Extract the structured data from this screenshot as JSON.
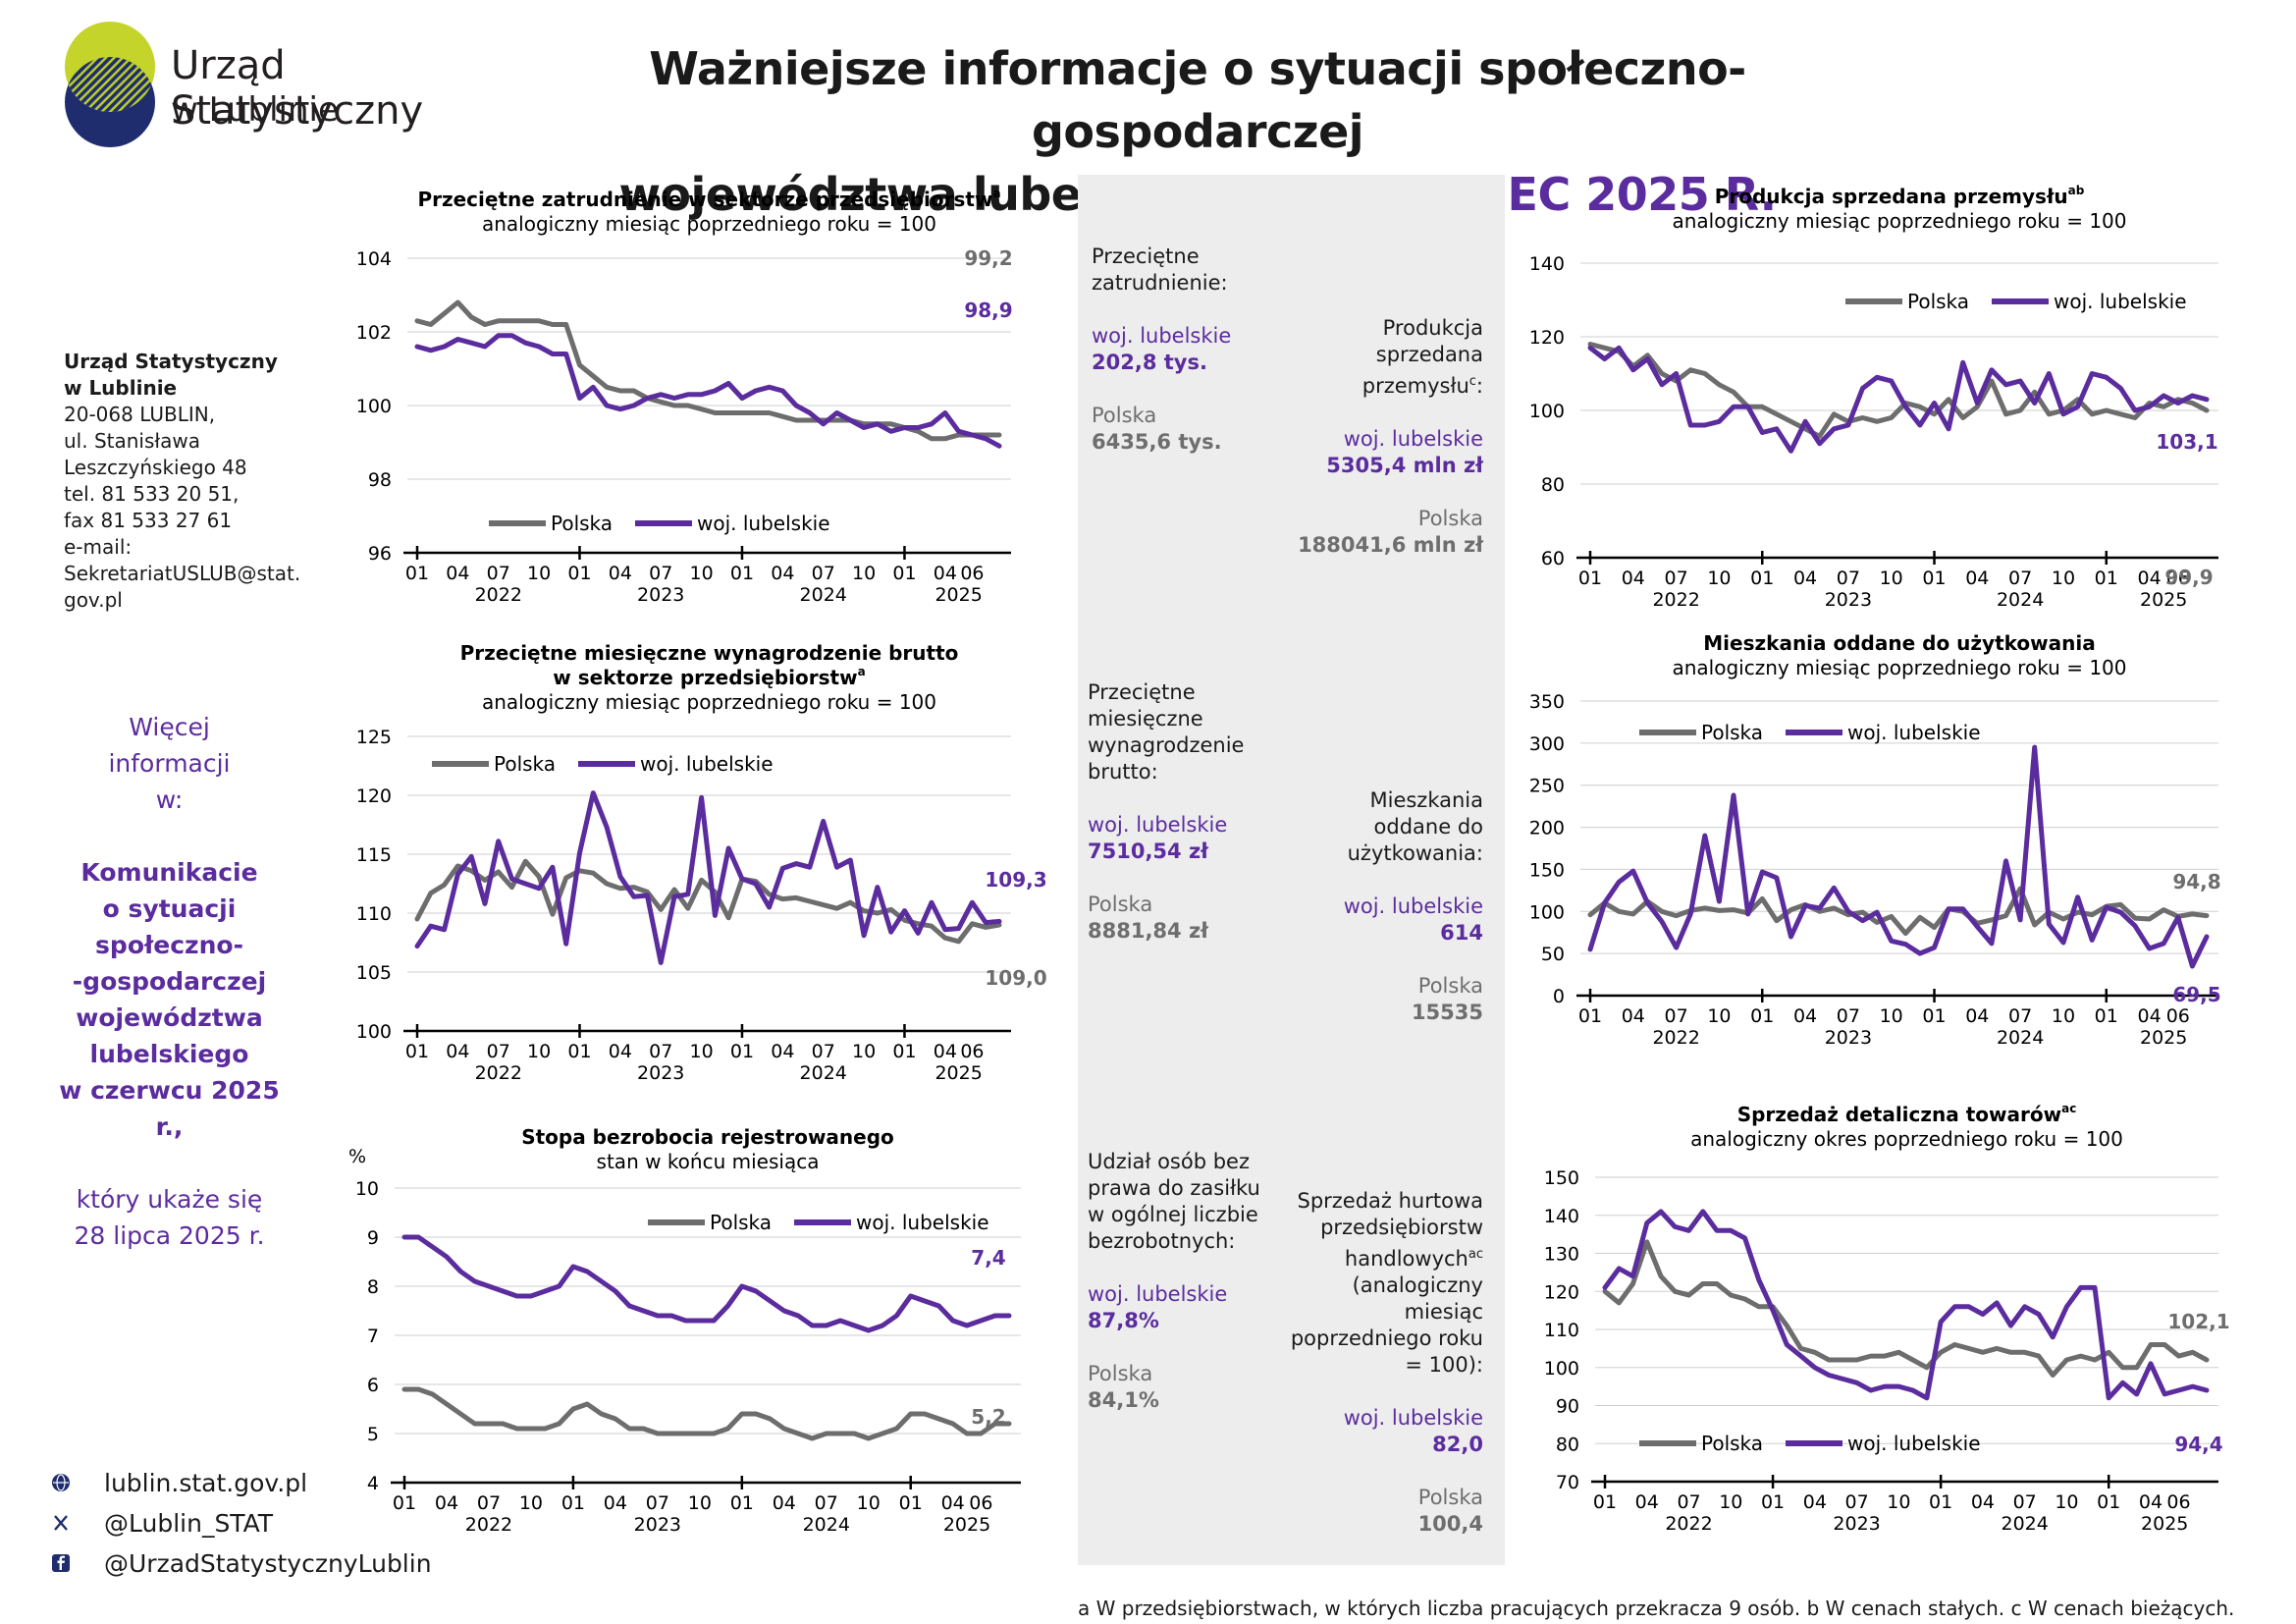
{
  "logo": {
    "line1": "Urząd Statystyczny",
    "line2": "w Lublinie"
  },
  "header": {
    "line1": "Ważniejsze informacje o sytuacji społeczno-gospodarczej",
    "line2_prefix": "województwa lubelskiego  –",
    "line2_accent": "CZERWIEC 2025 R."
  },
  "address": {
    "name1": "Urząd Statystyczny",
    "name2": "w Lublinie",
    "lines": [
      "20-068 LUBLIN,",
      "ul. Stanisława",
      "Leszczyńskiego 48",
      "tel. 81 533 20 51,",
      "fax 81 533 27 61",
      "e-mail:",
      "SekretariatUSLUB@stat.",
      "gov.pl"
    ]
  },
  "more_info": {
    "line1": "Więcej",
    "line2": "informacji",
    "line3": "w:",
    "bold_lines": [
      "Komunikacie",
      "o sytuacji",
      "społeczno-",
      "-gospodarczej",
      "województwa",
      "lubelskiego",
      "w czerwcu 2025 r.,"
    ],
    "tail1": "który ukaże się",
    "tail2": "28 lipca 2025 r."
  },
  "links": [
    {
      "icon": "globe-icon",
      "text": "lublin.stat.gov.pl"
    },
    {
      "icon": "x-icon",
      "text": "@Lublin_STAT"
    },
    {
      "icon": "facebook-icon",
      "text": "@UrzadStatystycznyLublin"
    }
  ],
  "colors": {
    "polska": "#6d6d6d",
    "lubelskie": "#5b2c9e"
  },
  "summary": {
    "employment": {
      "label1": "Przeciętne",
      "label2": "zatrudnienie:",
      "lub_label": "woj. lubelskie",
      "lub_value": "202,8 tys.",
      "pl_label": "Polska",
      "pl_value": "6435,6 tys."
    },
    "production": {
      "label1": "Produkcja",
      "label2": "sprzedana",
      "label3": "przemysłu",
      "label_sup": "c",
      "label_end": ":",
      "lub_label": "woj. lubelskie",
      "lub_value": "5305,4 mln zł",
      "pl_label": "Polska",
      "pl_value": "188041,6 mln zł"
    },
    "wages": {
      "label1": "Przeciętne",
      "label2": "miesięczne",
      "label3": "wynagrodzenie",
      "label4": "brutto:",
      "lub_label": "woj. lubelskie",
      "lub_value": "7510,54 zł",
      "pl_label": "Polska",
      "pl_value": "8881,84 zł"
    },
    "dwellings": {
      "label1": "Mieszkania",
      "label2": "oddane do",
      "label3": "użytkowania:",
      "lub_label": "woj. lubelskie",
      "lub_value": "614",
      "pl_label": "Polska",
      "pl_value": "15535"
    },
    "unemployed": {
      "label1": "Udział osób bez",
      "label2": "prawa do zasiłku",
      "label3": "w ogólnej liczbie",
      "label4": "bezrobotnych:",
      "lub_label": "woj. lubelskie",
      "lub_value": "87,8%",
      "pl_label": "Polska",
      "pl_value": "84,1%"
    },
    "wholesale": {
      "label1": "Sprzedaż hurtowa",
      "label2": "przedsiębiorstw",
      "label3": "handlowych",
      "label_sup": "ac",
      "label4": "(analogiczny",
      "label5": "miesiąc",
      "label6": "poprzedniego roku",
      "label7": "= 100):",
      "lub_label": "woj. lubelskie",
      "lub_value": "82,0",
      "pl_label": "Polska",
      "pl_value": "100,4"
    }
  },
  "footnote": "a W przedsiębiorstwach, w których liczba pracujących przekracza 9 osób.   b W cenach stałych.   c W cenach bieżących.",
  "chart_data": [
    {
      "id": "employment",
      "type": "line",
      "title": "Przeciętne zatrudnienie w sektorze przedsiębiorstw",
      "title_sup": "a",
      "subtitle": "analogiczny miesiąc poprzedniego roku = 100",
      "ylim": [
        96,
        104
      ],
      "yticks": [
        96,
        98,
        100,
        102,
        104
      ],
      "ylabel": "",
      "x_tick_labels": [
        "01",
        "04",
        "07",
        "10",
        "01",
        "04",
        "07",
        "10",
        "01",
        "04",
        "07",
        "10",
        "01",
        "04",
        "06"
      ],
      "year_labels": [
        "2022",
        "2023",
        "2024",
        "2025"
      ],
      "legend": [
        "Polska",
        "woj. lubelskie"
      ],
      "legend_position": "bottom-left",
      "last_labels": {
        "polska": "99,2",
        "lubelskie": "98,9"
      },
      "series": [
        {
          "name": "Polska",
          "values": [
            102.3,
            102.2,
            102.5,
            102.8,
            102.4,
            102.2,
            102.3,
            102.3,
            102.3,
            102.3,
            102.2,
            102.2,
            101.1,
            100.8,
            100.5,
            100.4,
            100.4,
            100.2,
            100.1,
            100.0,
            100.0,
            99.9,
            99.8,
            99.8,
            99.8,
            99.8,
            99.8,
            99.7,
            99.6,
            99.6,
            99.6,
            99.6,
            99.6,
            99.5,
            99.5,
            99.5,
            99.4,
            99.3,
            99.1,
            99.1,
            99.2,
            99.2,
            99.2,
            99.2
          ]
        },
        {
          "name": "woj. lubelskie",
          "values": [
            101.6,
            101.5,
            101.6,
            101.8,
            101.7,
            101.6,
            101.9,
            101.9,
            101.7,
            101.6,
            101.4,
            101.4,
            100.2,
            100.5,
            100.0,
            99.9,
            100.0,
            100.2,
            100.3,
            100.2,
            100.3,
            100.3,
            100.4,
            100.6,
            100.2,
            100.4,
            100.5,
            100.4,
            100.0,
            99.8,
            99.5,
            99.8,
            99.6,
            99.4,
            99.5,
            99.3,
            99.4,
            99.4,
            99.5,
            99.8,
            99.3,
            99.2,
            99.1,
            98.9
          ]
        }
      ]
    },
    {
      "id": "wages",
      "type": "line",
      "title": "Przeciętne miesięczne wynagrodzenie brutto",
      "title2": "w sektorze przedsiębiorstw",
      "title_sup": "a",
      "subtitle": "analogiczny miesiąc poprzedniego roku = 100",
      "ylim": [
        100,
        125
      ],
      "yticks": [
        100,
        105,
        110,
        115,
        120,
        125
      ],
      "ylabel": "",
      "x_tick_labels": [
        "01",
        "04",
        "07",
        "10",
        "01",
        "04",
        "07",
        "10",
        "01",
        "04",
        "07",
        "10",
        "01",
        "04",
        "06"
      ],
      "year_labels": [
        "2022",
        "2023",
        "2024",
        "2025"
      ],
      "legend": [
        "Polska",
        "woj. lubelskie"
      ],
      "legend_position": "top-left",
      "last_labels": {
        "polska": "109,0",
        "lubelskie": "109,3"
      },
      "series": [
        {
          "name": "Polska",
          "values": [
            109.5,
            111.7,
            112.4,
            114.0,
            113.6,
            112.8,
            113.5,
            112.2,
            114.4,
            113.1,
            109.9,
            113.0,
            113.6,
            113.4,
            112.5,
            112.1,
            112.2,
            111.8,
            110.3,
            112.0,
            110.4,
            112.8,
            111.8,
            109.6,
            112.9,
            112.7,
            111.6,
            111.2,
            111.3,
            111.0,
            110.7,
            110.4,
            110.9,
            110.2,
            110.0,
            110.3,
            109.4,
            109.1,
            108.9,
            107.9,
            107.6,
            109.1,
            108.8,
            109.0
          ]
        },
        {
          "name": "woj. lubelskie",
          "values": [
            107.2,
            108.9,
            108.6,
            113.3,
            114.8,
            110.8,
            116.1,
            112.9,
            112.5,
            112.1,
            113.9,
            107.4,
            115.1,
            120.2,
            117.3,
            113.1,
            111.4,
            111.5,
            105.8,
            111.4,
            111.6,
            119.8,
            109.8,
            115.5,
            112.9,
            112.5,
            110.5,
            113.8,
            114.2,
            113.9,
            117.8,
            113.9,
            114.5,
            108.1,
            112.2,
            108.4,
            110.2,
            108.3,
            110.9,
            108.6,
            108.7,
            110.9,
            109.2,
            109.3
          ]
        }
      ]
    },
    {
      "id": "unemployment",
      "type": "line",
      "title": "Stopa bezrobocia rejestrowanego",
      "subtitle": "stan w końcu miesiąca",
      "ylim": [
        4,
        10
      ],
      "yticks": [
        4,
        5,
        6,
        7,
        8,
        9,
        10
      ],
      "ylabel": "%",
      "x_tick_labels": [
        "01",
        "04",
        "07",
        "10",
        "01",
        "04",
        "07",
        "10",
        "01",
        "04",
        "07",
        "10",
        "01",
        "04",
        "06"
      ],
      "year_labels": [
        "2022",
        "2023",
        "2024",
        "2025"
      ],
      "legend": [
        "Polska",
        "woj. lubelskie"
      ],
      "legend_position": "top-right",
      "last_labels": {
        "polska": "5,2",
        "lubelskie": "7,4"
      },
      "series": [
        {
          "name": "Polska",
          "values": [
            5.9,
            5.9,
            5.8,
            5.6,
            5.4,
            5.2,
            5.2,
            5.2,
            5.1,
            5.1,
            5.1,
            5.2,
            5.5,
            5.6,
            5.4,
            5.3,
            5.1,
            5.1,
            5.0,
            5.0,
            5.0,
            5.0,
            5.0,
            5.1,
            5.4,
            5.4,
            5.3,
            5.1,
            5.0,
            4.9,
            5.0,
            5.0,
            5.0,
            4.9,
            5.0,
            5.1,
            5.4,
            5.4,
            5.3,
            5.2,
            5.0,
            5.0,
            5.2,
            5.2
          ]
        },
        {
          "name": "woj. lubelskie",
          "values": [
            9.0,
            9.0,
            8.8,
            8.6,
            8.3,
            8.1,
            8.0,
            7.9,
            7.8,
            7.8,
            7.9,
            8.0,
            8.4,
            8.3,
            8.1,
            7.9,
            7.6,
            7.5,
            7.4,
            7.4,
            7.3,
            7.3,
            7.3,
            7.6,
            8.0,
            7.9,
            7.7,
            7.5,
            7.4,
            7.2,
            7.2,
            7.3,
            7.2,
            7.1,
            7.2,
            7.4,
            7.8,
            7.7,
            7.6,
            7.3,
            7.2,
            7.3,
            7.4,
            7.4
          ]
        }
      ]
    },
    {
      "id": "production",
      "type": "line",
      "title": "Produkcja sprzedana przemysłu",
      "title_sup": "ab",
      "subtitle": "analogiczny miesiąc poprzedniego roku = 100",
      "ylim": [
        60,
        140
      ],
      "yticks": [
        60,
        80,
        100,
        120,
        140
      ],
      "ylabel": "",
      "x_tick_labels": [
        "01",
        "04",
        "07",
        "10",
        "01",
        "04",
        "07",
        "10",
        "01",
        "04",
        "07",
        "10",
        "01",
        "04",
        "06"
      ],
      "year_labels": [
        "2022",
        "2023",
        "2024",
        "2025"
      ],
      "legend": [
        "Polska",
        "woj. lubelskie"
      ],
      "legend_position": "top-right",
      "last_labels": {
        "polska": "99,9",
        "lubelskie": "103,1"
      },
      "series": [
        {
          "name": "Polska",
          "values": [
            118,
            117,
            116,
            112,
            115,
            110,
            108,
            111,
            110,
            107,
            105,
            101,
            101,
            99,
            97,
            95,
            93,
            99,
            97,
            98,
            97,
            98,
            102,
            101,
            99,
            103,
            98,
            101,
            108,
            99,
            100,
            105,
            99,
            100,
            103,
            99,
            100,
            99,
            98,
            102,
            101,
            103,
            102,
            100
          ]
        },
        {
          "name": "woj. lubelskie",
          "values": [
            117,
            114,
            117,
            111,
            114,
            107,
            110,
            96,
            96,
            97,
            101,
            101,
            94,
            95,
            89,
            97,
            91,
            95,
            96,
            106,
            109,
            108,
            101,
            96,
            102,
            95,
            113,
            102,
            111,
            107,
            108,
            102,
            110,
            99,
            101,
            110,
            109,
            106,
            100,
            101,
            104,
            102,
            104,
            103
          ]
        }
      ]
    },
    {
      "id": "dwellings",
      "type": "line",
      "title": "Mieszkania oddane do użytkowania",
      "subtitle": "analogiczny miesiąc poprzedniego roku = 100",
      "ylim": [
        0,
        350
      ],
      "yticks": [
        0,
        50,
        100,
        150,
        200,
        250,
        300,
        350
      ],
      "ylabel": "",
      "x_tick_labels": [
        "01",
        "04",
        "07",
        "10",
        "01",
        "04",
        "07",
        "10",
        "01",
        "04",
        "07",
        "10",
        "01",
        "04",
        "06"
      ],
      "year_labels": [
        "2022",
        "2023",
        "2024",
        "2025"
      ],
      "legend": [
        "Polska",
        "woj. lubelskie"
      ],
      "legend_position": "top-left",
      "last_labels": {
        "polska": "94,8",
        "lubelskie": "69,5"
      },
      "series": [
        {
          "name": "Polska",
          "values": [
            96,
            110,
            100,
            97,
            112,
            100,
            95,
            101,
            104,
            101,
            102,
            98,
            115,
            89,
            102,
            108,
            100,
            104,
            96,
            99,
            87,
            94,
            74,
            93,
            81,
            103,
            100,
            86,
            90,
            95,
            127,
            84,
            99,
            91,
            99,
            96,
            106,
            108,
            92,
            91,
            102,
            94,
            97,
            95
          ]
        },
        {
          "name": "woj. lubelskie",
          "values": [
            55,
            110,
            135,
            148,
            110,
            88,
            57,
            97,
            190,
            112,
            238,
            97,
            147,
            140,
            70,
            107,
            104,
            128,
            100,
            89,
            99,
            65,
            61,
            50,
            57,
            103,
            103,
            82,
            62,
            160,
            90,
            295,
            85,
            63,
            117,
            66,
            105,
            99,
            83,
            56,
            62,
            93,
            35,
            70
          ]
        }
      ]
    },
    {
      "id": "retail",
      "type": "line",
      "title": "Sprzedaż detaliczna towarów",
      "title_sup": "ac",
      "subtitle": "analogiczny okres poprzedniego roku = 100",
      "ylim": [
        70,
        150
      ],
      "yticks": [
        70,
        80,
        90,
        100,
        110,
        120,
        130,
        140,
        150
      ],
      "ylabel": "",
      "x_tick_labels": [
        "01",
        "04",
        "07",
        "10",
        "01",
        "04",
        "07",
        "10",
        "01",
        "04",
        "07",
        "10",
        "01",
        "04",
        "06"
      ],
      "year_labels": [
        "2022",
        "2023",
        "2024",
        "2025"
      ],
      "legend": [
        "Polska",
        "woj. lubelskie"
      ],
      "legend_position": "bottom-left",
      "last_labels": {
        "polska": "102,1",
        "lubelskie": "94,4"
      },
      "series": [
        {
          "name": "Polska",
          "values": [
            120,
            117,
            122,
            133,
            124,
            120,
            119,
            122,
            122,
            119,
            118,
            116,
            116,
            111,
            105,
            104,
            102,
            102,
            102,
            103,
            103,
            104,
            102,
            100,
            104,
            106,
            105,
            104,
            105,
            104,
            104,
            103,
            98,
            102,
            103,
            102,
            104,
            100,
            100,
            106,
            106,
            103,
            104,
            102
          ]
        },
        {
          "name": "woj. lubelskie",
          "values": [
            121,
            126,
            124,
            138,
            141,
            137,
            136,
            141,
            136,
            136,
            134,
            123,
            115,
            106,
            103,
            100,
            98,
            97,
            96,
            94,
            95,
            95,
            94,
            92,
            112,
            116,
            116,
            114,
            117,
            111,
            116,
            114,
            108,
            116,
            121,
            121,
            92,
            96,
            93,
            101,
            93,
            94,
            95,
            94
          ]
        }
      ]
    }
  ]
}
